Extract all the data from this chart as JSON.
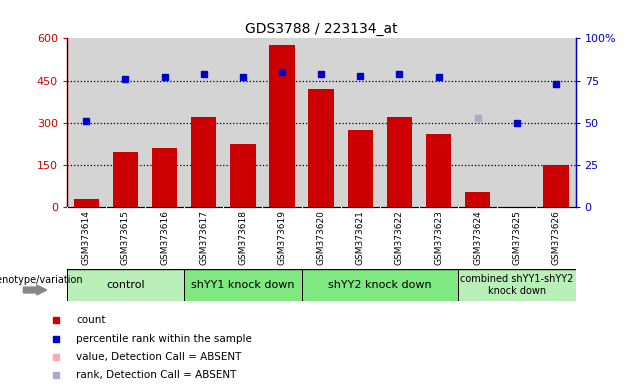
{
  "title": "GDS3788 / 223134_at",
  "samples": [
    "GSM373614",
    "GSM373615",
    "GSM373616",
    "GSM373617",
    "GSM373618",
    "GSM373619",
    "GSM373620",
    "GSM373621",
    "GSM373622",
    "GSM373623",
    "GSM373624",
    "GSM373625",
    "GSM373626"
  ],
  "counts": [
    30,
    195,
    210,
    320,
    225,
    575,
    420,
    275,
    320,
    260,
    55,
    0,
    150
  ],
  "percentile_ranks": [
    51,
    76,
    77,
    79,
    77,
    80,
    79,
    78,
    79,
    77,
    53,
    50,
    73
  ],
  "absent_value_indices": [
    11
  ],
  "absent_rank_indices": [
    10
  ],
  "bar_color_normal": "#cc0000",
  "bar_color_absent": "#ffaaaa",
  "dot_color_normal": "#0000cc",
  "dot_color_absent": "#aaaacc",
  "ylim_left": [
    0,
    600
  ],
  "ylim_right": [
    0,
    100
  ],
  "yticks_left": [
    0,
    150,
    300,
    450,
    600
  ],
  "yticks_right": [
    0,
    25,
    50,
    75,
    100
  ],
  "ytick_labels_left": [
    "0",
    "150",
    "300",
    "450",
    "600"
  ],
  "ytick_labels_right": [
    "0",
    "25",
    "50",
    "75",
    "100%"
  ],
  "hlines": [
    150,
    300,
    450
  ],
  "group_defs": [
    {
      "start": 0,
      "end": 2,
      "label": "control",
      "color": "#b8f0b8"
    },
    {
      "start": 3,
      "end": 5,
      "label": "shYY1 knock down",
      "color": "#80e880"
    },
    {
      "start": 6,
      "end": 9,
      "label": "shYY2 knock down",
      "color": "#80e880"
    },
    {
      "start": 10,
      "end": 12,
      "label": "combined shYY1-shYY2\nknock down",
      "color": "#b8f0b8"
    }
  ],
  "genotype_label": "genotype/variation",
  "plot_bg_color": "#d4d4d4",
  "left_axis_color": "#cc0000",
  "right_axis_color": "#0000cc",
  "tick_label_bg": "#d4d4d4"
}
